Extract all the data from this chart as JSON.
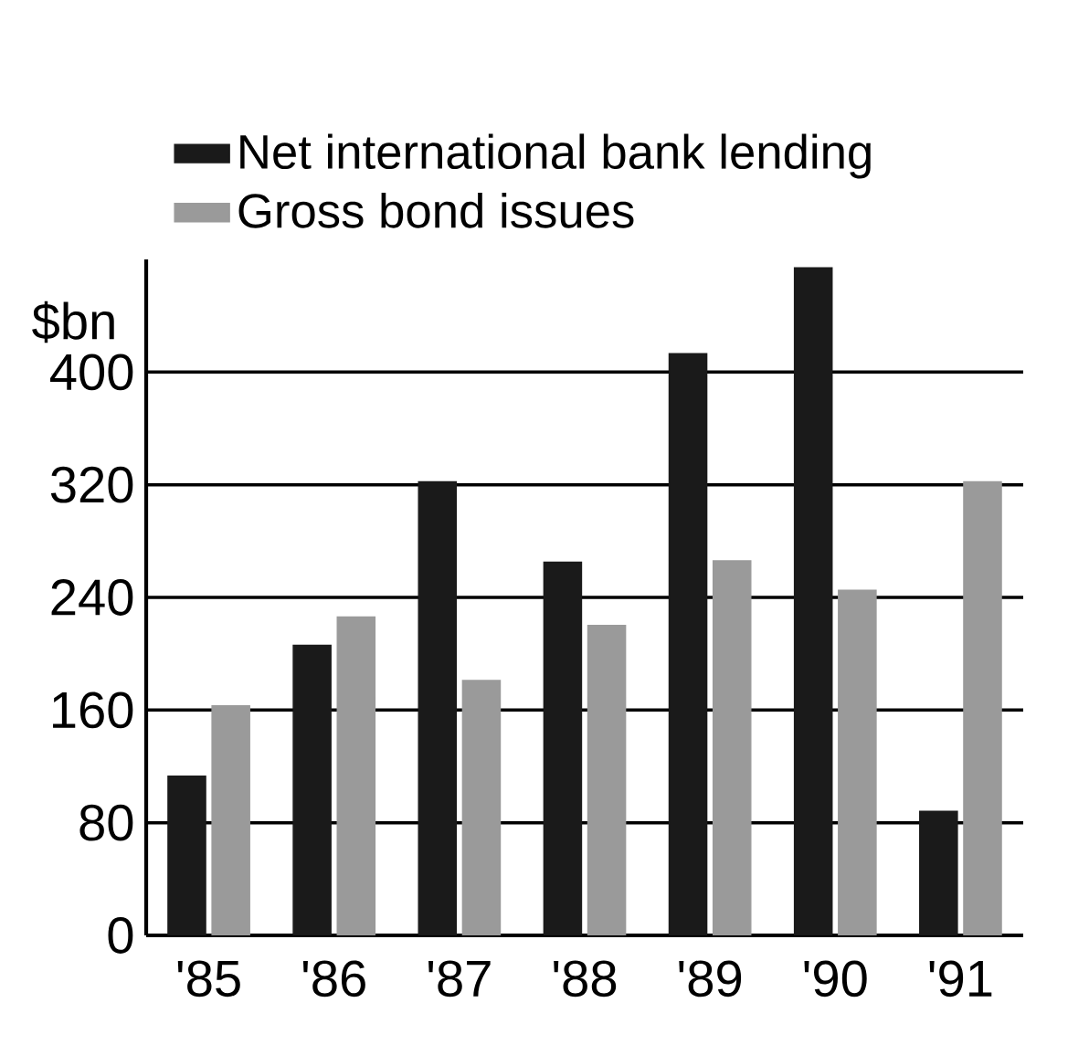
{
  "chart_data": {
    "type": "bar",
    "ylabel": "$bn",
    "categories": [
      "'85",
      "'86",
      "'87",
      "'88",
      "'89",
      "'90",
      "'91"
    ],
    "series": [
      {
        "name": "Net international bank lending",
        "color": "#1a1a1a",
        "values": [
          113,
          206,
          322,
          265,
          413,
          474,
          88
        ]
      },
      {
        "name": "Gross bond issues",
        "color": "#9a9a9a",
        "values": [
          163,
          226,
          181,
          220,
          266,
          245,
          322
        ]
      }
    ],
    "ylim": [
      0,
      480
    ],
    "yticks": [
      0,
      80,
      160,
      240,
      320,
      400
    ],
    "grid": "y",
    "legend": "top left"
  }
}
